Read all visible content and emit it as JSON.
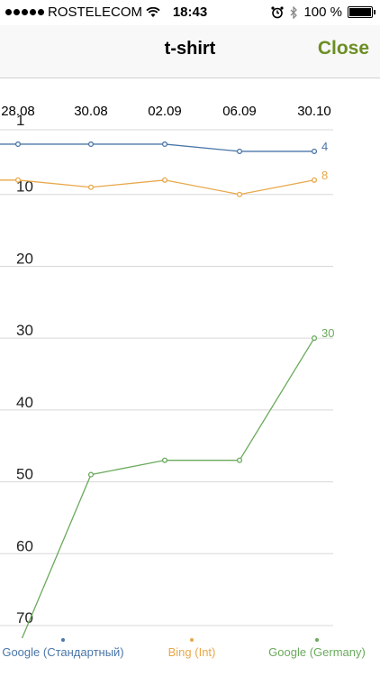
{
  "status_bar": {
    "carrier": "ROSTELECOM",
    "time": "18:43",
    "battery_percent": "100 %",
    "battery_level": 1.0
  },
  "nav": {
    "title": "t-shirt",
    "close_label": "Close",
    "close_color": "#6b8e23"
  },
  "chart_data": {
    "type": "line",
    "categories": [
      "28.08",
      "30.08",
      "02.09",
      "06.09",
      "30.10"
    ],
    "ylim": [
      1,
      70
    ],
    "y_inverted": true,
    "y_ticks": [
      1,
      10,
      20,
      30,
      40,
      50,
      60,
      70
    ],
    "grid": true,
    "legend_position": "bottom",
    "series": [
      {
        "name": "Google (Стандартный)",
        "color": "#4a76a8",
        "values": [
          3,
          3,
          3,
          4,
          4
        ],
        "end_label": "4"
      },
      {
        "name": "Bing (Int)",
        "color": "#e8a84a",
        "values": [
          8,
          9,
          8,
          10,
          8
        ],
        "end_label": "8"
      },
      {
        "name": "Google (Germany)",
        "color": "#6aaa5c",
        "values": [
          74,
          49,
          47,
          47,
          30
        ],
        "end_label": "30"
      }
    ]
  }
}
